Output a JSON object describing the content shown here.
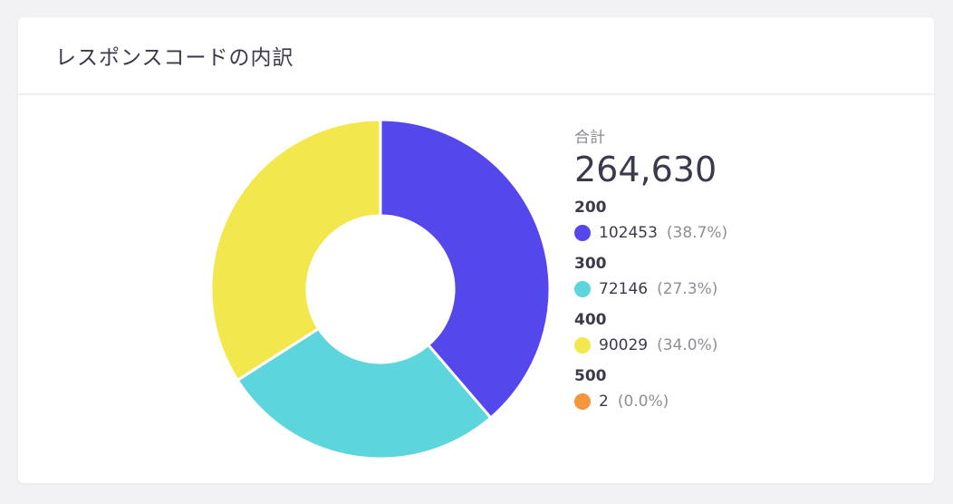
{
  "card": {
    "title": "レスポンスコードの内訳"
  },
  "summary": {
    "total_label": "合計",
    "total_value": "264,630"
  },
  "legend": [
    {
      "code": "200",
      "count": "102453",
      "percent": "(38.7%)",
      "color": "#5447ec"
    },
    {
      "code": "300",
      "count": "72146",
      "percent": "(27.3%)",
      "color": "#5cd6dc"
    },
    {
      "code": "400",
      "count": "90029",
      "percent": "(34.0%)",
      "color": "#f2e84e"
    },
    {
      "code": "500",
      "count": "2",
      "percent": "(0.0%)",
      "color": "#f5963c"
    }
  ],
  "chart_data": {
    "type": "pie",
    "variant": "donut",
    "title": "レスポンスコードの内訳",
    "categories": [
      "200",
      "300",
      "400",
      "500"
    ],
    "values": [
      102453,
      72146,
      90029,
      2
    ],
    "percentages": [
      38.7,
      27.3,
      34.0,
      0.0
    ],
    "colors": [
      "#5447ec",
      "#5cd6dc",
      "#f2e84e",
      "#f5963c"
    ],
    "total": 264630,
    "total_label": "合計",
    "legend_position": "right"
  }
}
